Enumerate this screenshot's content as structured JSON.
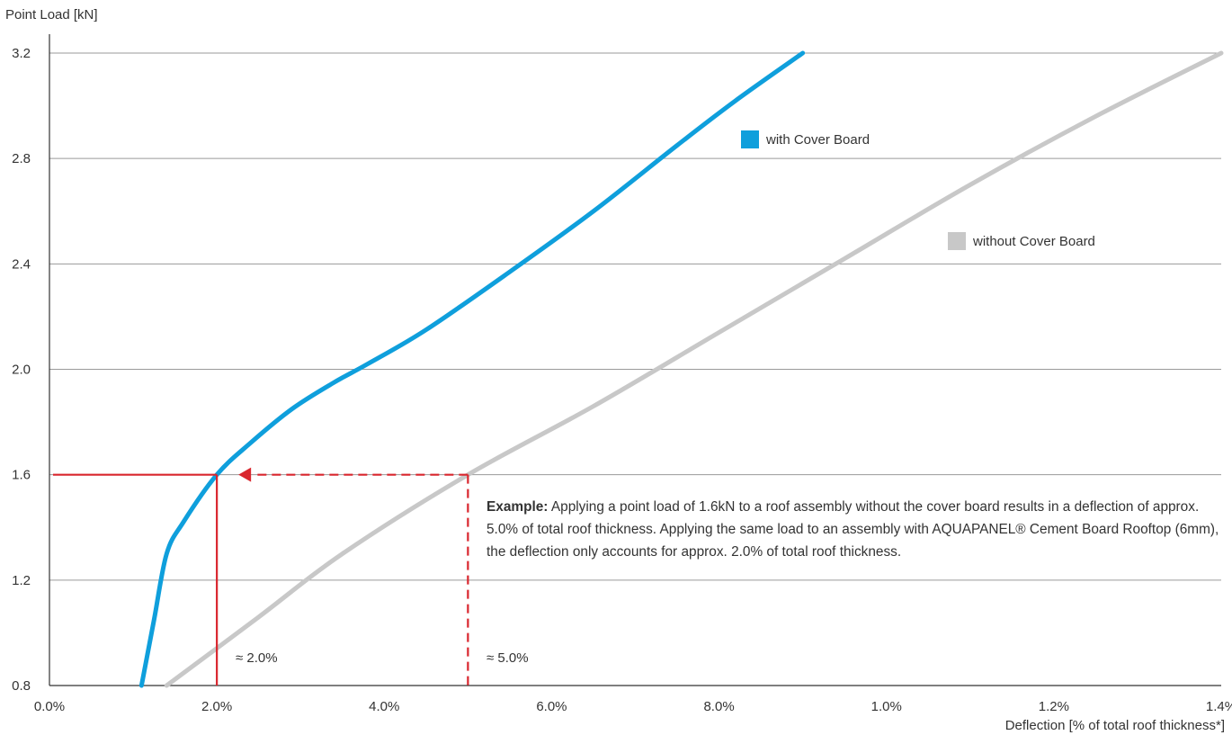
{
  "chart_data": {
    "type": "line",
    "ylabel": "Point Load [kN]",
    "xlabel": "Deflection [% of total roof thickness*]",
    "yticks": [
      0.8,
      1.2,
      1.6,
      2.0,
      2.4,
      2.8,
      3.2
    ],
    "ytick_labels": [
      "0.8",
      "1.2",
      "1.6",
      "2.0",
      "2.4",
      "2.8",
      "3.2"
    ],
    "xtick_labels": [
      "0.0%",
      "2.0%",
      "4.0%",
      "6.0%",
      "8.0%",
      "1.0%",
      "1.2%",
      "1.4%"
    ],
    "xlim": [
      0,
      14
    ],
    "ylim": [
      0.8,
      3.2
    ],
    "grid": "horizontal",
    "series": [
      {
        "name": "with Cover Board",
        "color": "#0f9fdc",
        "points": [
          [
            1.1,
            0.8
          ],
          [
            1.25,
            1.05
          ],
          [
            1.4,
            1.3
          ],
          [
            1.6,
            1.42
          ],
          [
            2.0,
            1.6
          ],
          [
            2.4,
            1.72
          ],
          [
            2.9,
            1.85
          ],
          [
            3.4,
            1.95
          ],
          [
            3.8,
            2.02
          ],
          [
            4.5,
            2.15
          ],
          [
            5.5,
            2.37
          ],
          [
            6.5,
            2.6
          ],
          [
            7.5,
            2.85
          ],
          [
            8.2,
            3.02
          ],
          [
            9.0,
            3.2
          ]
        ]
      },
      {
        "name": "without Cover Board",
        "color": "#c8c8c8",
        "points": [
          [
            1.4,
            0.8
          ],
          [
            2.5,
            1.06
          ],
          [
            3.5,
            1.3
          ],
          [
            5.0,
            1.6
          ],
          [
            6.5,
            1.86
          ],
          [
            8.0,
            2.14
          ],
          [
            9.5,
            2.42
          ],
          [
            11.0,
            2.7
          ],
          [
            12.5,
            2.96
          ],
          [
            14.0,
            3.2
          ]
        ]
      }
    ],
    "annotation": {
      "load": 1.6,
      "with_value": 2.0,
      "without_value": 5.0,
      "with_label": "≈ 2.0%",
      "without_label": "≈ 5.0%",
      "color": "#d9262e",
      "note_bold": "Example:",
      "note_text": " Applying a point load of 1.6kN to a roof assembly without the cover board results in a deflection of approx. 5.0% of total roof thickness.  Applying the same load to an assembly with AQUAPANEL® Cement Board Rooftop (6mm), the deflection only  accounts for approx. 2.0% of total roof thickness."
    }
  }
}
